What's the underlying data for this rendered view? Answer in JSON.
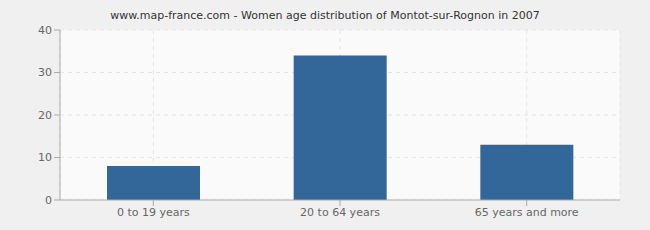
{
  "chart_data": {
    "type": "bar",
    "title": "www.map-france.com - Women age distribution of Montot-sur-Rognon in 2007",
    "categories": [
      "0 to 19 years",
      "20 to 64 years",
      "65 years and more"
    ],
    "values": [
      8,
      34,
      13
    ],
    "color": "#336699",
    "ylim": [
      0,
      40
    ],
    "yticks": [
      0,
      10,
      20,
      30,
      40
    ],
    "grid": true
  }
}
